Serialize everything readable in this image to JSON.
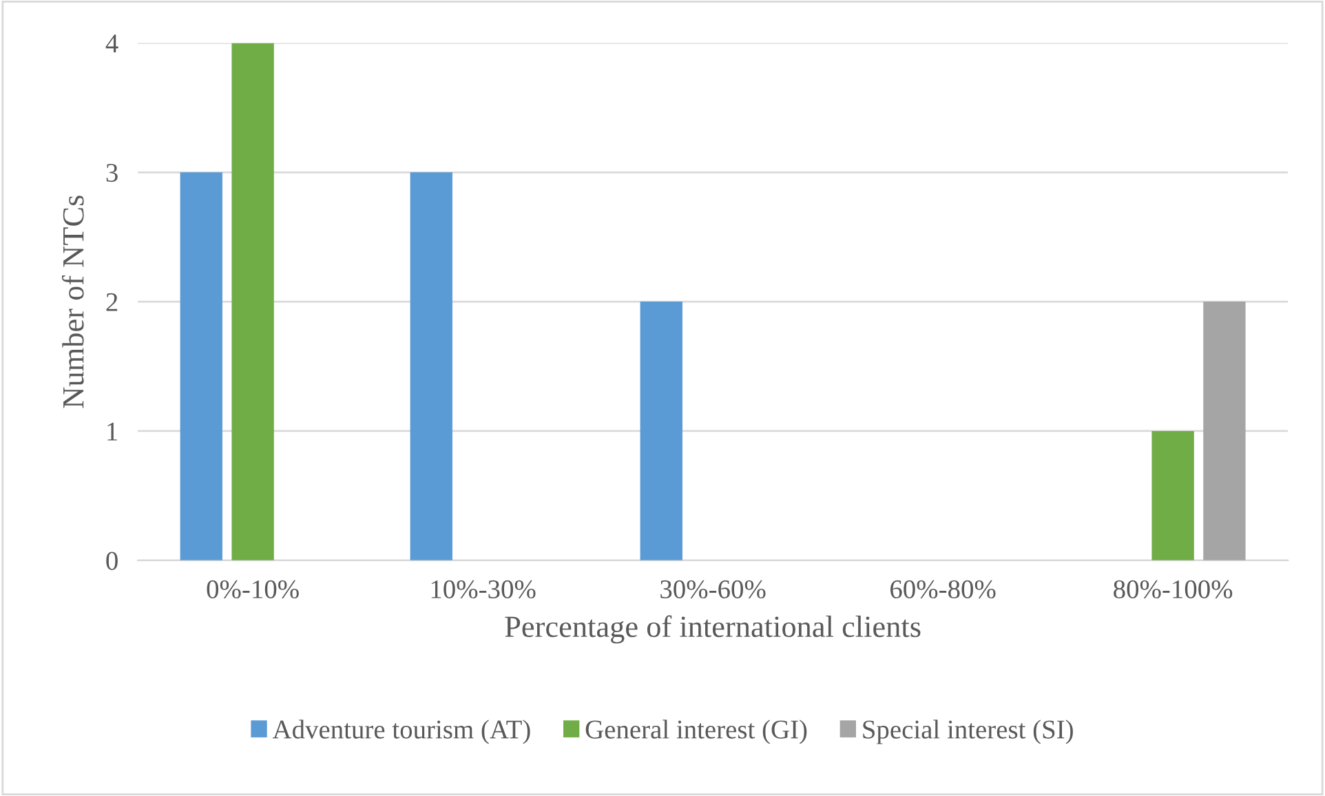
{
  "chart_data": {
    "type": "bar",
    "xlabel": "Percentage of international clients",
    "ylabel": "Number of NTCs",
    "categories": [
      "0%-10%",
      "10%-30%",
      "30%-60%",
      "60%-80%",
      "80%-100%"
    ],
    "series": [
      {
        "name": "Adventure tourism (AT)",
        "color": "#5b9bd5",
        "values": [
          3,
          3,
          2,
          0,
          0
        ]
      },
      {
        "name": "General interest (GI)",
        "color": "#70ad47",
        "values": [
          4,
          0,
          0,
          0,
          1
        ]
      },
      {
        "name": "Special interest (SI)",
        "color": "#a5a5a5",
        "values": [
          0,
          0,
          0,
          0,
          2
        ]
      }
    ],
    "ylim": [
      0,
      4
    ],
    "yticks": [
      0,
      1,
      2,
      3,
      4
    ],
    "grid": "y",
    "legend": "bottom"
  }
}
